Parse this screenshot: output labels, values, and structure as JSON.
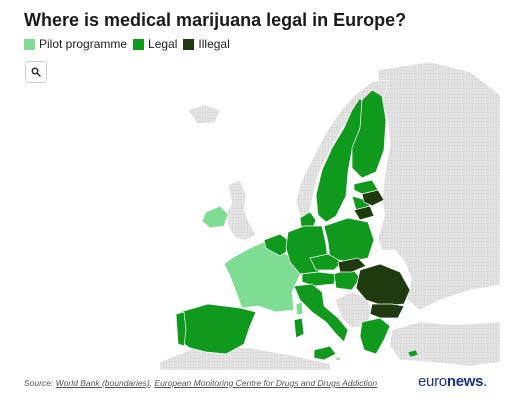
{
  "title": "Where is medical marijuana legal in Europe?",
  "legend": [
    {
      "label": "Pilot programme",
      "color": "#7fdc93"
    },
    {
      "label": "Legal",
      "color": "#0f9a1e"
    },
    {
      "label": "Illegal",
      "color": "#1f3a0f"
    }
  ],
  "search": {
    "icon": "search-icon"
  },
  "colors": {
    "other_land": "#dcdcdc",
    "border": "#ffffff"
  },
  "footer": {
    "prefix": "Source: ",
    "link1": "World Bank (boundaries)",
    "sep": ", ",
    "link2": "European Monitoring Centre for Drugs and Drugs Addiction"
  },
  "logo": {
    "part1": "euro",
    "part2": "news",
    "dot": "."
  }
}
